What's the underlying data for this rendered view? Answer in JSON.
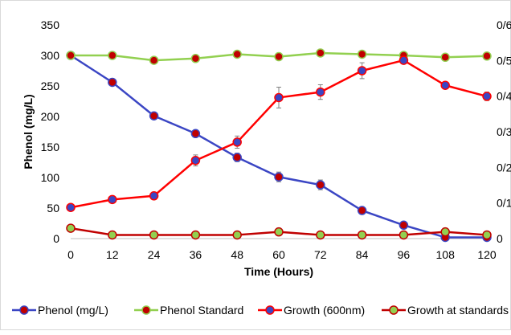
{
  "chart_data": {
    "type": "line",
    "title": "",
    "xlabel": "Time (Hours)",
    "ylabel": "Phenol (mg/L)",
    "x": [
      0,
      12,
      24,
      36,
      48,
      60,
      72,
      84,
      96,
      108,
      120
    ],
    "x_ticks": [
      "0",
      "12",
      "24",
      "36",
      "48",
      "60",
      "72",
      "84",
      "96",
      "108",
      "120"
    ],
    "ylim": [
      0,
      350
    ],
    "y_ticks": [
      "0",
      "50",
      "100",
      "150",
      "200",
      "250",
      "300",
      "350"
    ],
    "y2_ticks": [
      "0",
      "0/1",
      "0/2",
      "0/3",
      "0/4",
      "0/5",
      "0/6"
    ],
    "legend_position": "bottom",
    "series": [
      {
        "name": "Phenol (mg/L)",
        "line_color": "#3b46c4",
        "marker_color": "#c00000",
        "values": [
          300,
          256,
          201,
          172,
          133,
          101,
          88,
          46,
          22,
          2,
          2
        ],
        "errors": [
          0,
          4,
          5,
          5,
          7,
          8,
          8,
          4,
          3,
          2,
          2
        ]
      },
      {
        "name": "Phenol Standard",
        "line_color": "#92d050",
        "marker_color": "#c00000",
        "values": [
          300,
          300,
          292,
          295,
          302,
          298,
          304,
          302,
          300,
          297,
          299
        ],
        "errors": [
          0,
          0,
          0,
          0,
          0,
          0,
          0,
          0,
          0,
          0,
          0
        ]
      },
      {
        "name": "Growth (600nm)",
        "line_color": "#ff0000",
        "marker_color": "#3b46c4",
        "values": [
          51,
          64,
          70,
          128,
          158,
          231,
          240,
          275,
          292,
          251,
          233
        ],
        "errors": [
          3,
          5,
          6,
          9,
          10,
          17,
          12,
          13,
          5,
          5,
          7
        ]
      },
      {
        "name": "Growth at standards",
        "line_color": "#c00000",
        "marker_color": "#92d050",
        "values": [
          17,
          6,
          6,
          6,
          6,
          11,
          6,
          6,
          6,
          11,
          6
        ],
        "errors": [
          0,
          0,
          0,
          0,
          0,
          0,
          0,
          0,
          0,
          0,
          0
        ]
      }
    ]
  }
}
